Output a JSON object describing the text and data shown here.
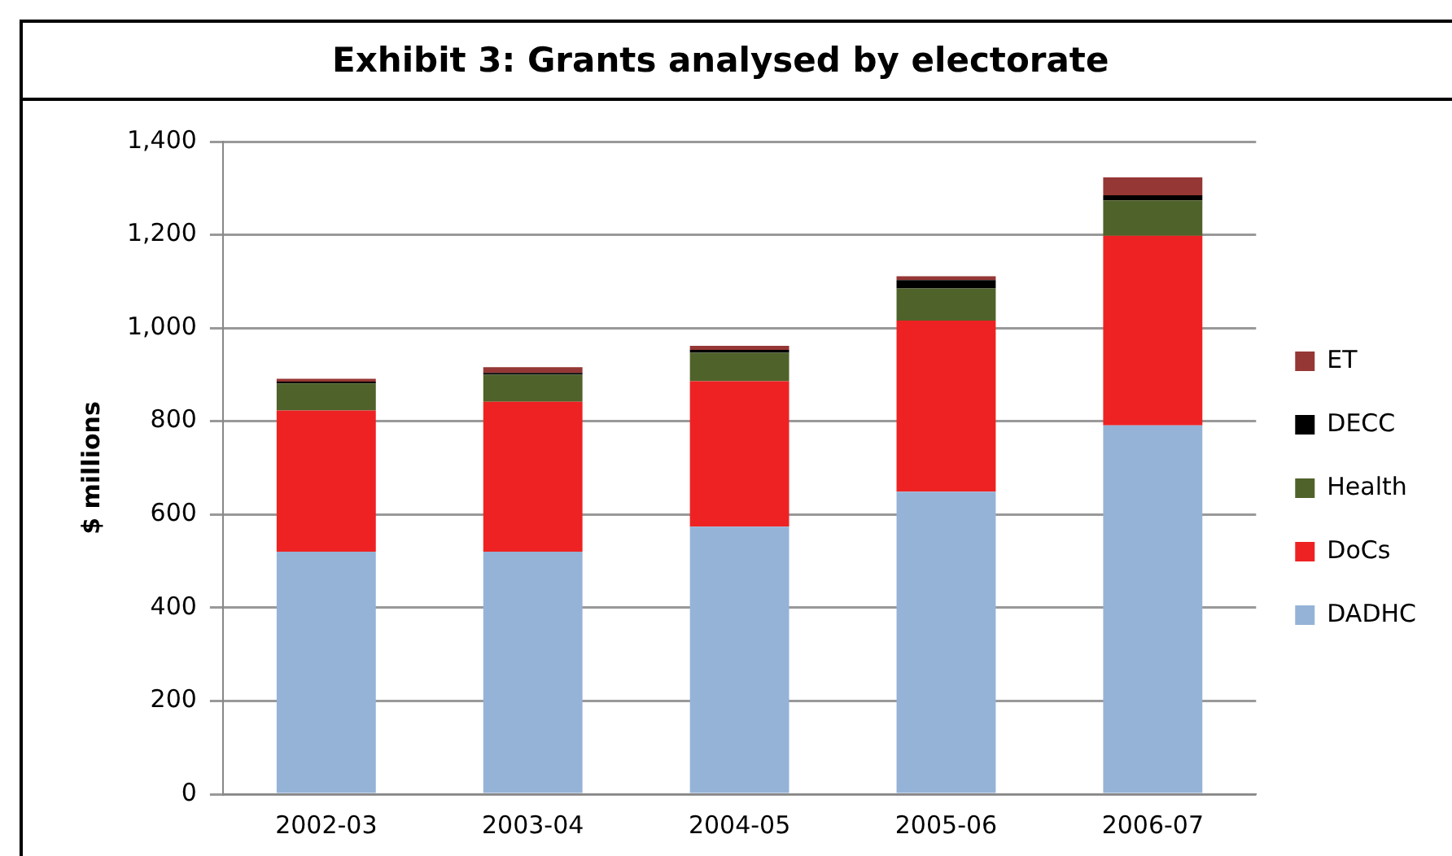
{
  "chart_data": {
    "type": "bar",
    "title": "Exhibit 3: Grants analysed by electorate",
    "ylabel": "$ millions",
    "categories": [
      "2002-03",
      "2003-04",
      "2004-05",
      "2005-06",
      "2006-07"
    ],
    "stacked": true,
    "ylim": [
      0,
      1400
    ],
    "yticks": [
      {
        "value": 0,
        "label": "0"
      },
      {
        "value": 200,
        "label": "200"
      },
      {
        "value": 400,
        "label": "400"
      },
      {
        "value": 600,
        "label": "600"
      },
      {
        "value": 800,
        "label": "800"
      },
      {
        "value": 1000,
        "label": "1,000"
      },
      {
        "value": 1200,
        "label": "1,200"
      },
      {
        "value": 1400,
        "label": "1,400"
      }
    ],
    "grid": "y",
    "legend": "right",
    "series": [
      {
        "name": "DADHC",
        "color": "#95b3d7",
        "values": [
          520,
          520,
          574,
          649,
          791
        ]
      },
      {
        "name": "DoCs",
        "color": "#ee2222",
        "values": [
          303,
          322,
          312,
          367,
          407
        ]
      },
      {
        "name": "Health",
        "color": "#4f622a",
        "values": [
          58,
          58,
          61,
          69,
          76
        ]
      },
      {
        "name": "DECC",
        "color": "#000000",
        "values": [
          4,
          4,
          6,
          18,
          11
        ]
      },
      {
        "name": "ET",
        "color": "#953735",
        "values": [
          6,
          12,
          9,
          8,
          38
        ]
      }
    ]
  }
}
